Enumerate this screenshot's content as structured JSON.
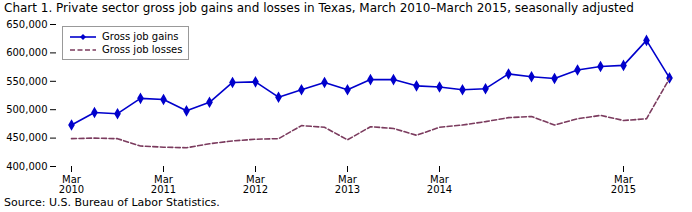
{
  "chart_data": {
    "type": "line",
    "title": "Chart 1. Private sector gross job gains and losses in Texas, March 2010–March 2015, seasonally adjusted",
    "source": "Source: U.S. Bureau of Labor Statistics.",
    "categories": [
      "Mar\n2010",
      null,
      null,
      null,
      "Mar\n2011",
      null,
      null,
      null,
      "Mar\n2012",
      null,
      null,
      null,
      "Mar\n2013",
      null,
      null,
      null,
      "Mar\n2014",
      null,
      null,
      null,
      null,
      null,
      null,
      null,
      "Mar\n2015",
      null,
      null
    ],
    "series": [
      {
        "name": "Gross job gains",
        "color": "#0000CC",
        "marker": "diamond",
        "line_style": "solid",
        "values": [
          473000,
          495000,
          493000,
          520000,
          518000,
          498000,
          513000,
          548000,
          549000,
          522000,
          535000,
          548000,
          535000,
          553000,
          553000,
          542000,
          540000,
          535000,
          537000,
          563000,
          558000,
          555000,
          570000,
          576000,
          578000,
          622000,
          556000
        ]
      },
      {
        "name": "Gross job losses",
        "color": "#7B3B5E",
        "line_style": "dashed",
        "values": [
          449000,
          450000,
          449000,
          436000,
          434000,
          433000,
          440000,
          445000,
          448000,
          449000,
          472000,
          469000,
          447000,
          470000,
          467000,
          455000,
          469000,
          473000,
          479000,
          486000,
          488000,
          473000,
          484000,
          490000,
          481000,
          484000,
          555000
        ]
      }
    ],
    "ylim": [
      400000,
      650000
    ],
    "yticks": [
      {
        "value": 400000,
        "label": "400,000"
      },
      {
        "value": 450000,
        "label": "450,000"
      },
      {
        "value": 500000,
        "label": "500,000"
      },
      {
        "value": 550000,
        "label": "550,000"
      },
      {
        "value": 600000,
        "label": "600,000"
      },
      {
        "value": 650000,
        "label": "650,000"
      }
    ],
    "legend": "upper left",
    "grid": false
  }
}
